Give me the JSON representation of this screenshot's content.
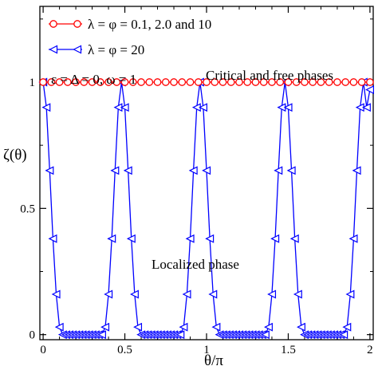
{
  "chart_data": {
    "type": "line",
    "xlabel": "θ/π",
    "ylabel": "ζ(θ)",
    "xlim": [
      -0.02,
      2.02
    ],
    "ylim": [
      -0.02,
      1.3
    ],
    "x_ticks": [
      0,
      0.5,
      1,
      1.5,
      2
    ],
    "x_tick_labels": [
      "0",
      "0.5",
      "1",
      "1.5",
      "2"
    ],
    "y_ticks": [
      0,
      0.5,
      1
    ],
    "y_tick_labels": [
      "0",
      "0.5",
      "1"
    ],
    "grid": false,
    "legend_position": "top-left",
    "annotations": [
      {
        "text": "ε = Δ = 0, ω = 1",
        "role": "parameters"
      },
      {
        "text": "Critical and free phases",
        "role": "upper-region-label"
      },
      {
        "text": "Localized phase",
        "role": "lower-region-label"
      }
    ],
    "series": [
      {
        "name": "λ = φ = 0.1, 2.0 and 10",
        "color": "#ff0000",
        "marker": "circle",
        "x": [
          0,
          0.05,
          0.1,
          0.15,
          0.2,
          0.25,
          0.3,
          0.35,
          0.4,
          0.45,
          0.5,
          0.55,
          0.6,
          0.65,
          0.7,
          0.75,
          0.8,
          0.85,
          0.9,
          0.95,
          1.0,
          1.05,
          1.1,
          1.15,
          1.2,
          1.25,
          1.3,
          1.35,
          1.4,
          1.45,
          1.5,
          1.55,
          1.6,
          1.65,
          1.7,
          1.75,
          1.8,
          1.85,
          1.9,
          1.95,
          2.0
        ],
        "y": [
          1,
          1,
          1,
          1,
          1,
          1,
          1,
          1,
          1,
          1,
          1,
          1,
          1,
          1,
          1,
          1,
          1,
          1,
          1,
          1,
          1,
          1,
          1,
          1,
          1,
          1,
          1,
          1,
          1,
          1,
          1,
          1,
          1,
          1,
          1,
          1,
          1,
          1,
          1,
          1,
          1
        ]
      },
      {
        "name": "λ = φ = 20",
        "color": "#0000ff",
        "marker": "triangle-left",
        "x": [
          0,
          0.02,
          0.04,
          0.06,
          0.08,
          0.1,
          0.12,
          0.14,
          0.16,
          0.18,
          0.2,
          0.22,
          0.24,
          0.26,
          0.28,
          0.3,
          0.32,
          0.34,
          0.36,
          0.38,
          0.4,
          0.42,
          0.44,
          0.46,
          0.48,
          0.5,
          0.52,
          0.54,
          0.56,
          0.58,
          0.6,
          0.62,
          0.64,
          0.66,
          0.68,
          0.7,
          0.72,
          0.74,
          0.76,
          0.78,
          0.8,
          0.82,
          0.84,
          0.86,
          0.88,
          0.9,
          0.92,
          0.94,
          0.96,
          0.98,
          1.0,
          1.02,
          1.04,
          1.06,
          1.08,
          1.1,
          1.12,
          1.14,
          1.16,
          1.18,
          1.2,
          1.22,
          1.24,
          1.26,
          1.28,
          1.3,
          1.32,
          1.34,
          1.36,
          1.38,
          1.4,
          1.42,
          1.44,
          1.46,
          1.48,
          1.5,
          1.52,
          1.54,
          1.56,
          1.58,
          1.6,
          1.62,
          1.64,
          1.66,
          1.68,
          1.7,
          1.72,
          1.74,
          1.76,
          1.78,
          1.8,
          1.82,
          1.84,
          1.86,
          1.88,
          1.9,
          1.92,
          1.94,
          1.96,
          1.98,
          2.0
        ],
        "y": [
          1.0,
          0.9,
          0.65,
          0.38,
          0.16,
          0.03,
          0.0,
          0.0,
          0.0,
          0.0,
          0.0,
          0.0,
          0.0,
          0.0,
          0.0,
          0.0,
          0.0,
          0.0,
          0.0,
          0.03,
          0.16,
          0.38,
          0.65,
          0.9,
          1.0,
          0.9,
          0.65,
          0.38,
          0.16,
          0.03,
          0.0,
          0.0,
          0.0,
          0.0,
          0.0,
          0.0,
          0.0,
          0.0,
          0.0,
          0.0,
          0.0,
          0.0,
          0.0,
          0.03,
          0.16,
          0.38,
          0.65,
          0.9,
          1.0,
          0.9,
          0.65,
          0.38,
          0.16,
          0.03,
          0.0,
          0.0,
          0.0,
          0.0,
          0.0,
          0.0,
          0.0,
          0.0,
          0.0,
          0.0,
          0.0,
          0.0,
          0.0,
          0.0,
          0.0,
          0.03,
          0.16,
          0.38,
          0.65,
          0.9,
          1.0,
          0.9,
          0.65,
          0.38,
          0.16,
          0.03,
          0.0,
          0.0,
          0.0,
          0.0,
          0.0,
          0.0,
          0.0,
          0.0,
          0.0,
          0.0,
          0.0,
          0.0,
          0.0,
          0.03,
          0.16,
          0.38,
          0.65,
          0.9,
          1.0,
          0.9,
          0.97
        ]
      }
    ]
  }
}
